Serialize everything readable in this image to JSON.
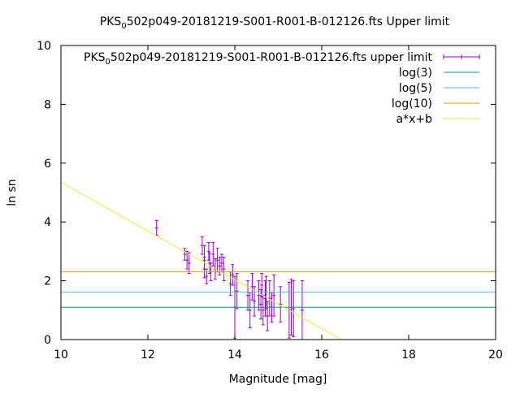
{
  "chart_data": {
    "type": "scatter",
    "title_main": "PKS",
    "title_sub": "0",
    "title_rest": "502p049-20181219-S001-R001-B-012126.fts Upper limit",
    "xlabel": "Magnitude [mag]",
    "ylabel": "ln sn",
    "xlim": [
      10,
      20
    ],
    "ylim": [
      0,
      10
    ],
    "xticks": [
      "10",
      "12",
      "14",
      "16",
      "18",
      "20"
    ],
    "yticks": [
      "0",
      "2",
      "4",
      "6",
      "8",
      "10"
    ],
    "grid": false,
    "legend_position": "top-right",
    "legend": [
      {
        "main": "PKS",
        "sub": "0",
        "rest": "502p049-20181219-S001-R001-B-012126.fts upper limit",
        "kind": "errorbar",
        "color": "#9400d3"
      },
      {
        "main": "log(3)",
        "sub": "",
        "rest": "",
        "kind": "line",
        "color": "#009e73"
      },
      {
        "main": "log(5)",
        "sub": "",
        "rest": "",
        "kind": "line",
        "color": "#56b4e9"
      },
      {
        "main": "log(10)",
        "sub": "",
        "rest": "",
        "kind": "line",
        "color": "#e69f00"
      },
      {
        "main": "a*x+b",
        "sub": "",
        "rest": "",
        "kind": "line",
        "color": "#f0e442"
      }
    ],
    "series": [
      {
        "name": "PKS 0502p049-20181219-S001-R001-B-012126.fts upper limit",
        "kind": "errorbar",
        "color": "#9400d3",
        "points": [
          [
            12.2,
            3.8,
            0.25
          ],
          [
            12.85,
            2.9,
            0.2
          ],
          [
            12.9,
            2.7,
            0.3
          ],
          [
            12.95,
            2.6,
            0.35
          ],
          [
            13.25,
            3.2,
            0.3
          ],
          [
            13.3,
            2.8,
            0.4
          ],
          [
            13.3,
            2.4,
            0.3
          ],
          [
            13.35,
            2.15,
            0.25
          ],
          [
            13.4,
            3.0,
            0.3
          ],
          [
            13.42,
            2.6,
            0.35
          ],
          [
            13.45,
            2.3,
            0.3
          ],
          [
            13.5,
            2.9,
            0.4
          ],
          [
            13.55,
            2.4,
            0.35
          ],
          [
            13.6,
            2.7,
            0.4
          ],
          [
            13.65,
            2.5,
            0.3
          ],
          [
            13.7,
            2.6,
            0.3
          ],
          [
            13.75,
            2.4,
            0.4
          ],
          [
            13.9,
            1.9,
            0.4
          ],
          [
            13.95,
            2.2,
            0.35
          ],
          [
            14.0,
            1.1,
            1.05
          ],
          [
            14.05,
            1.65,
            0.6
          ],
          [
            14.3,
            1.5,
            0.5
          ],
          [
            14.35,
            1.0,
            0.6
          ],
          [
            14.4,
            1.8,
            0.45
          ],
          [
            14.45,
            1.3,
            0.5
          ],
          [
            14.55,
            1.5,
            0.5
          ],
          [
            14.6,
            1.2,
            0.5
          ],
          [
            14.62,
            1.85,
            0.4
          ],
          [
            14.65,
            1.0,
            0.5
          ],
          [
            14.7,
            1.4,
            0.6
          ],
          [
            14.72,
            1.6,
            0.55
          ],
          [
            14.75,
            0.8,
            0.5
          ],
          [
            14.8,
            1.4,
            0.6
          ],
          [
            14.85,
            1.1,
            0.5
          ],
          [
            14.9,
            1.5,
            0.7
          ],
          [
            15.05,
            1.2,
            0.6
          ],
          [
            15.25,
            1.0,
            0.95
          ],
          [
            15.3,
            1.1,
            0.95
          ],
          [
            15.35,
            1.05,
            0.95
          ],
          [
            15.55,
            1.0,
            1.0
          ]
        ]
      },
      {
        "name": "log(3)",
        "kind": "hline",
        "color": "#009e73",
        "y": 1.0986
      },
      {
        "name": "log(5)",
        "kind": "hline",
        "color": "#56b4e9",
        "y": 1.6094
      },
      {
        "name": "log(10)",
        "kind": "hline",
        "color": "#e69f00",
        "y": 2.3026
      },
      {
        "name": "a*x+b",
        "kind": "fitline",
        "color": "#f0e442",
        "points": [
          [
            10,
            5.35
          ],
          [
            16.45,
            0
          ]
        ]
      }
    ]
  }
}
